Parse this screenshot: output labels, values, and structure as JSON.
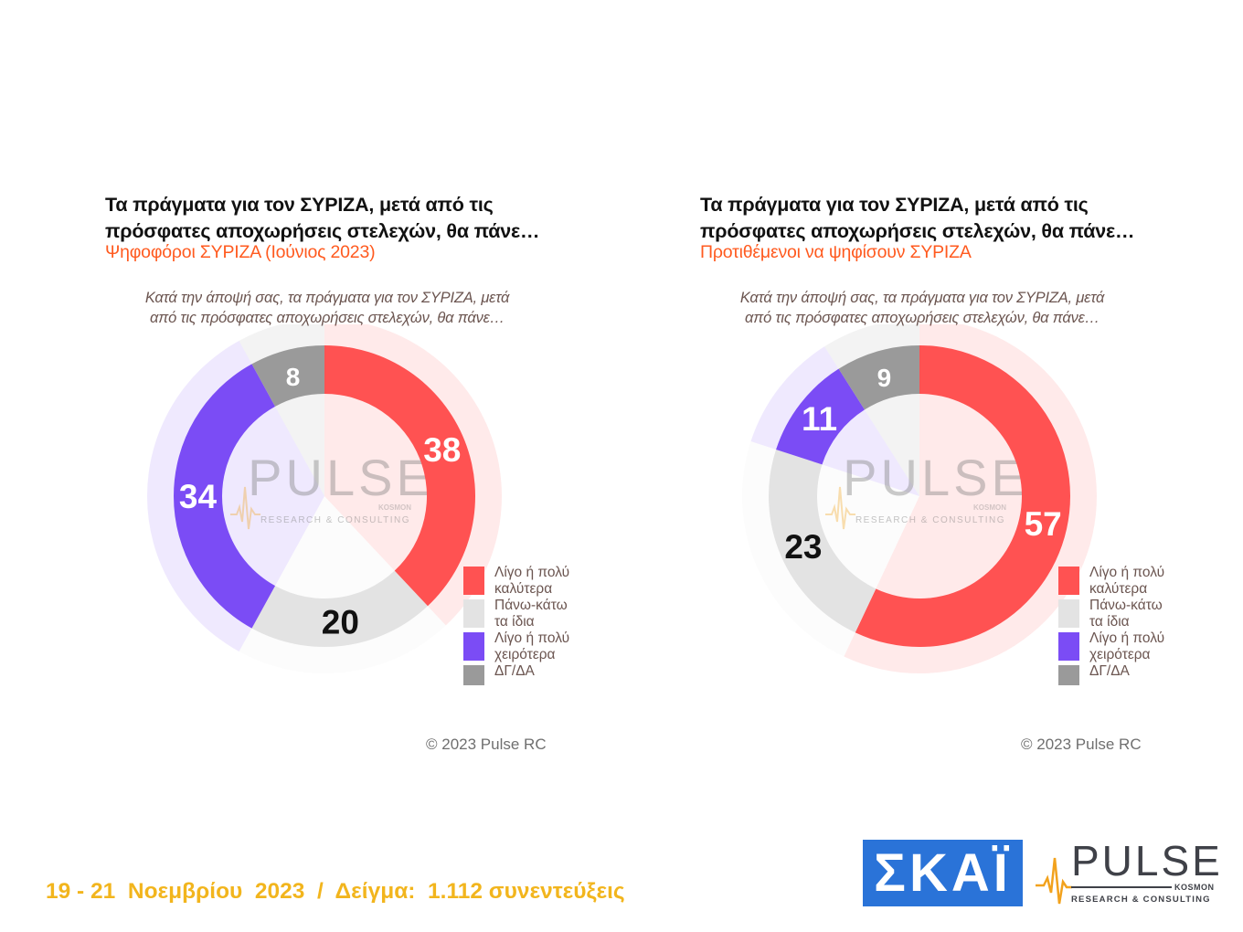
{
  "panels": [
    {
      "title_line1": "Τα πράγματα για τον ΣΥΡΙΖΑ, μετά από τις",
      "title_line2": "πρόσφατες αποχωρήσεις στελεχών, θα πάνε…",
      "subtitle": "Ψηφοφόροι ΣΥΡΙΖΑ (Ιούνιος 2023)",
      "question_line1": "Κατά την άποψή σας, τα πράγματα για τον ΣΥΡΙΖΑ, μετά",
      "question_line2": "από τις πρόσφατες αποχωρήσεις στελεχών, θα πάνε…",
      "copyright": "© 2023 Pulse RC"
    },
    {
      "title_line1": "Τα πράγματα για τον ΣΥΡΙΖΑ, μετά από τις",
      "title_line2": "πρόσφατες αποχωρήσεις στελεχών, θα πάνε…",
      "subtitle": "Προτιθέμενοι να ψηφίσουν ΣΥΡΙΖΑ",
      "question_line1": "Κατά την άποψή σας, τα πράγματα για τον ΣΥΡΙΖΑ, μετά",
      "question_line2": "από τις πρόσφατες αποχωρήσεις στελεχών, θα πάνε…",
      "copyright": "© 2023 Pulse RC"
    }
  ],
  "legend": [
    {
      "line1": "Λίγο ή πολύ",
      "line2": "καλύτερα",
      "color": "#ff5252"
    },
    {
      "line1": "Πάνω-κάτω",
      "line2": "τα ίδια",
      "color": "#e3e3e3"
    },
    {
      "line1": "Λίγο ή πολύ",
      "line2": "χειρότερα",
      "color": "#7b4cf5"
    },
    {
      "line1": "ΔΓ/ΔΑ",
      "line2": "",
      "color": "#9a9a9a"
    }
  ],
  "chart_data": [
    {
      "type": "pie",
      "title": "Τα πράγματα για τον ΣΥΡΙΖΑ, μετά από τις πρόσφατες αποχωρήσεις στελεχών, θα πάνε…",
      "subtitle": "Ψηφοφόροι ΣΥΡΙΖΑ (Ιούνιος 2023)",
      "categories": [
        "Λίγο ή πολύ καλύτερα",
        "Πάνω-κάτω τα ίδια",
        "Λίγο ή πολύ χειρότερα",
        "ΔΓ/ΔΑ"
      ],
      "values": [
        38,
        20,
        34,
        8
      ],
      "colors": [
        "#ff5252",
        "#e3e3e3",
        "#7b4cf5",
        "#9a9a9a"
      ],
      "label_colors": [
        "#ffffff",
        "#111111",
        "#ffffff",
        "#ffffff"
      ],
      "watermark": "PULSE",
      "watermark_tagline": "RESEARCH & CONSULTING",
      "watermark_brand": "KOSMON"
    },
    {
      "type": "pie",
      "title": "Τα πράγματα για τον ΣΥΡΙΖΑ, μετά από τις πρόσφατες αποχωρήσεις στελεχών, θα πάνε…",
      "subtitle": "Προτιθέμενοι να ψηφίσουν ΣΥΡΙΖΑ",
      "categories": [
        "Λίγο ή πολύ καλύτερα",
        "Πάνω-κάτω τα ίδια",
        "Λίγο ή πολύ χειρότερα",
        "ΔΓ/ΔΑ"
      ],
      "values": [
        57,
        23,
        11,
        9
      ],
      "colors": [
        "#ff5252",
        "#e3e3e3",
        "#7b4cf5",
        "#9a9a9a"
      ],
      "label_colors": [
        "#ffffff",
        "#111111",
        "#ffffff",
        "#ffffff"
      ],
      "watermark": "PULSE",
      "watermark_tagline": "RESEARCH & CONSULTING",
      "watermark_brand": "KOSMON"
    }
  ],
  "footer": {
    "text": "19 - 21  Νοεμβρίου  2023  /  Δείγμα:  1.112 συνεντεύξεις"
  },
  "logos": {
    "skai": "ΣΚΑΪ",
    "pulse": "PULSE",
    "pulse_brand": "KOSMON",
    "pulse_tagline": "RESEARCH & CONSULTING"
  }
}
